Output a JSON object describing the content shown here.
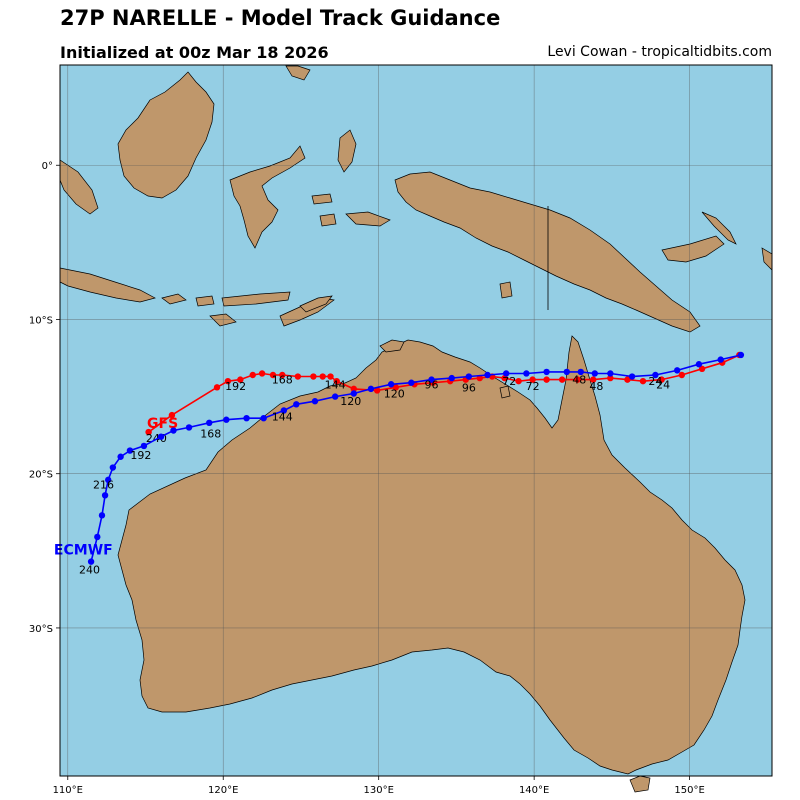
{
  "header": {
    "title": "27P NARELLE - Model Track Guidance",
    "subtitle": "Initialized at 00z Mar 18 2026",
    "credit": "Levi Cowan - tropicaltidbits.com"
  },
  "colors": {
    "ocean": "#94cee4",
    "land": "#bf976b",
    "gfs": "#ff0000",
    "ecmwf": "#0000ff",
    "grid": "#555555"
  },
  "map": {
    "projection": "Mercator-like (lon/lat)",
    "lon_range": [
      109.5,
      155.3
    ],
    "lat_range": [
      -39.6,
      6.5
    ],
    "lon_ticks": [
      {
        "value": 110,
        "label": "110°E"
      },
      {
        "value": 120,
        "label": "120°E"
      },
      {
        "value": 130,
        "label": "130°E"
      },
      {
        "value": 140,
        "label": "140°E"
      },
      {
        "value": 150,
        "label": "150°E"
      }
    ],
    "lat_ticks": [
      {
        "value": 0,
        "label": "0°"
      },
      {
        "value": -10,
        "label": "10°S"
      },
      {
        "value": -20,
        "label": "20°S"
      },
      {
        "value": -30,
        "label": "30°S"
      }
    ],
    "grid": true
  },
  "tracks": [
    {
      "name": "GFS",
      "color": "#ff0000",
      "points": [
        {
          "lon": 153.2,
          "lat": -12.3
        },
        {
          "lon": 152.1,
          "lat": -12.8
        },
        {
          "lon": 150.8,
          "lat": -13.2
        },
        {
          "lon": 149.5,
          "lat": -13.6
        },
        {
          "lon": 148.2,
          "lat": -13.9
        },
        {
          "lon": 147.0,
          "lat": -14.0
        },
        {
          "lon": 146.0,
          "lat": -13.9
        },
        {
          "lon": 144.9,
          "lat": -13.8
        },
        {
          "lon": 143.8,
          "lat": -13.9
        },
        {
          "lon": 142.8,
          "lat": -13.9
        },
        {
          "lon": 141.8,
          "lat": -13.9
        },
        {
          "lon": 140.8,
          "lat": -13.9
        },
        {
          "lon": 139.9,
          "lat": -13.9
        },
        {
          "lon": 139.0,
          "lat": -14.0
        },
        {
          "lon": 138.1,
          "lat": -13.8
        },
        {
          "lon": 137.3,
          "lat": -13.7
        },
        {
          "lon": 136.5,
          "lat": -13.8
        },
        {
          "lon": 135.6,
          "lat": -13.9
        },
        {
          "lon": 134.6,
          "lat": -14.0
        },
        {
          "lon": 133.5,
          "lat": -14.1
        },
        {
          "lon": 132.3,
          "lat": -14.2
        },
        {
          "lon": 131.1,
          "lat": -14.4
        },
        {
          "lon": 129.9,
          "lat": -14.6
        },
        {
          "lon": 128.4,
          "lat": -14.5
        },
        {
          "lon": 127.3,
          "lat": -14.0
        },
        {
          "lon": 126.9,
          "lat": -13.7
        },
        {
          "lon": 126.4,
          "lat": -13.7
        },
        {
          "lon": 125.8,
          "lat": -13.7
        },
        {
          "lon": 124.8,
          "lat": -13.7
        },
        {
          "lon": 123.8,
          "lat": -13.6
        },
        {
          "lon": 123.2,
          "lat": -13.6
        },
        {
          "lon": 122.5,
          "lat": -13.5
        },
        {
          "lon": 121.9,
          "lat": -13.6
        },
        {
          "lon": 121.1,
          "lat": -13.9
        },
        {
          "lon": 120.3,
          "lat": -14.0
        },
        {
          "lon": 119.6,
          "lat": -14.4
        },
        {
          "lon": 116.7,
          "lat": -16.2
        },
        {
          "lon": 115.2,
          "lat": -17.3
        }
      ],
      "hour_labels": [
        {
          "text": "24",
          "lon": 148.3,
          "lat": -14.2
        },
        {
          "text": "48",
          "lon": 144.0,
          "lat": -14.3
        },
        {
          "text": "72",
          "lon": 139.9,
          "lat": -14.3
        },
        {
          "text": "96",
          "lon": 135.8,
          "lat": -14.4
        },
        {
          "text": "120",
          "lon": 131.0,
          "lat": -14.8
        },
        {
          "text": "144",
          "lon": 127.2,
          "lat": -14.2
        },
        {
          "text": "168",
          "lon": 123.8,
          "lat": -13.9
        },
        {
          "text": "192",
          "lon": 120.8,
          "lat": -14.3
        },
        {
          "text": "240",
          "lon": 115.7,
          "lat": -17.7
        }
      ],
      "name_label": {
        "lon": 116.1,
        "lat": -16.7,
        "text": "GFS"
      }
    },
    {
      "name": "ECMWF",
      "color": "#0000ff",
      "points": [
        {
          "lon": 153.3,
          "lat": -12.3
        },
        {
          "lon": 152.0,
          "lat": -12.6
        },
        {
          "lon": 150.6,
          "lat": -12.9
        },
        {
          "lon": 149.2,
          "lat": -13.3
        },
        {
          "lon": 147.8,
          "lat": -13.6
        },
        {
          "lon": 146.3,
          "lat": -13.7
        },
        {
          "lon": 144.9,
          "lat": -13.5
        },
        {
          "lon": 143.9,
          "lat": -13.5
        },
        {
          "lon": 143.0,
          "lat": -13.4
        },
        {
          "lon": 142.1,
          "lat": -13.4
        },
        {
          "lon": 140.8,
          "lat": -13.4
        },
        {
          "lon": 139.5,
          "lat": -13.5
        },
        {
          "lon": 138.2,
          "lat": -13.5
        },
        {
          "lon": 137.0,
          "lat": -13.6
        },
        {
          "lon": 135.8,
          "lat": -13.7
        },
        {
          "lon": 134.7,
          "lat": -13.8
        },
        {
          "lon": 133.4,
          "lat": -13.9
        },
        {
          "lon": 132.1,
          "lat": -14.1
        },
        {
          "lon": 130.8,
          "lat": -14.2
        },
        {
          "lon": 129.5,
          "lat": -14.5
        },
        {
          "lon": 128.4,
          "lat": -14.8
        },
        {
          "lon": 127.2,
          "lat": -15.0
        },
        {
          "lon": 125.9,
          "lat": -15.3
        },
        {
          "lon": 124.7,
          "lat": -15.5
        },
        {
          "lon": 123.9,
          "lat": -15.9
        },
        {
          "lon": 122.6,
          "lat": -16.4
        },
        {
          "lon": 121.5,
          "lat": -16.4
        },
        {
          "lon": 120.2,
          "lat": -16.5
        },
        {
          "lon": 119.1,
          "lat": -16.7
        },
        {
          "lon": 117.8,
          "lat": -17.0
        },
        {
          "lon": 116.8,
          "lat": -17.2
        },
        {
          "lon": 116.0,
          "lat": -17.6
        },
        {
          "lon": 114.9,
          "lat": -18.2
        },
        {
          "lon": 114.0,
          "lat": -18.5
        },
        {
          "lon": 113.4,
          "lat": -18.9
        },
        {
          "lon": 112.9,
          "lat": -19.6
        },
        {
          "lon": 112.6,
          "lat": -20.4
        },
        {
          "lon": 112.4,
          "lat": -21.4
        },
        {
          "lon": 112.2,
          "lat": -22.7
        },
        {
          "lon": 111.9,
          "lat": -24.1
        },
        {
          "lon": 111.5,
          "lat": -25.7
        }
      ],
      "hour_labels": [
        {
          "text": "24",
          "lon": 147.8,
          "lat": -14.0
        },
        {
          "text": "48",
          "lon": 142.9,
          "lat": -13.9
        },
        {
          "text": "72",
          "lon": 138.4,
          "lat": -14.0
        },
        {
          "text": "96",
          "lon": 133.4,
          "lat": -14.2
        },
        {
          "text": "120",
          "lon": 128.2,
          "lat": -15.3
        },
        {
          "text": "144",
          "lon": 123.8,
          "lat": -16.3
        },
        {
          "text": "168",
          "lon": 119.2,
          "lat": -17.4
        },
        {
          "text": "192",
          "lon": 114.7,
          "lat": -18.8
        },
        {
          "text": "216",
          "lon": 112.3,
          "lat": -20.7
        },
        {
          "text": "240",
          "lon": 111.4,
          "lat": -26.2
        }
      ],
      "name_label": {
        "lon": 111.0,
        "lat": -24.9,
        "text": "ECMWF"
      }
    }
  ]
}
